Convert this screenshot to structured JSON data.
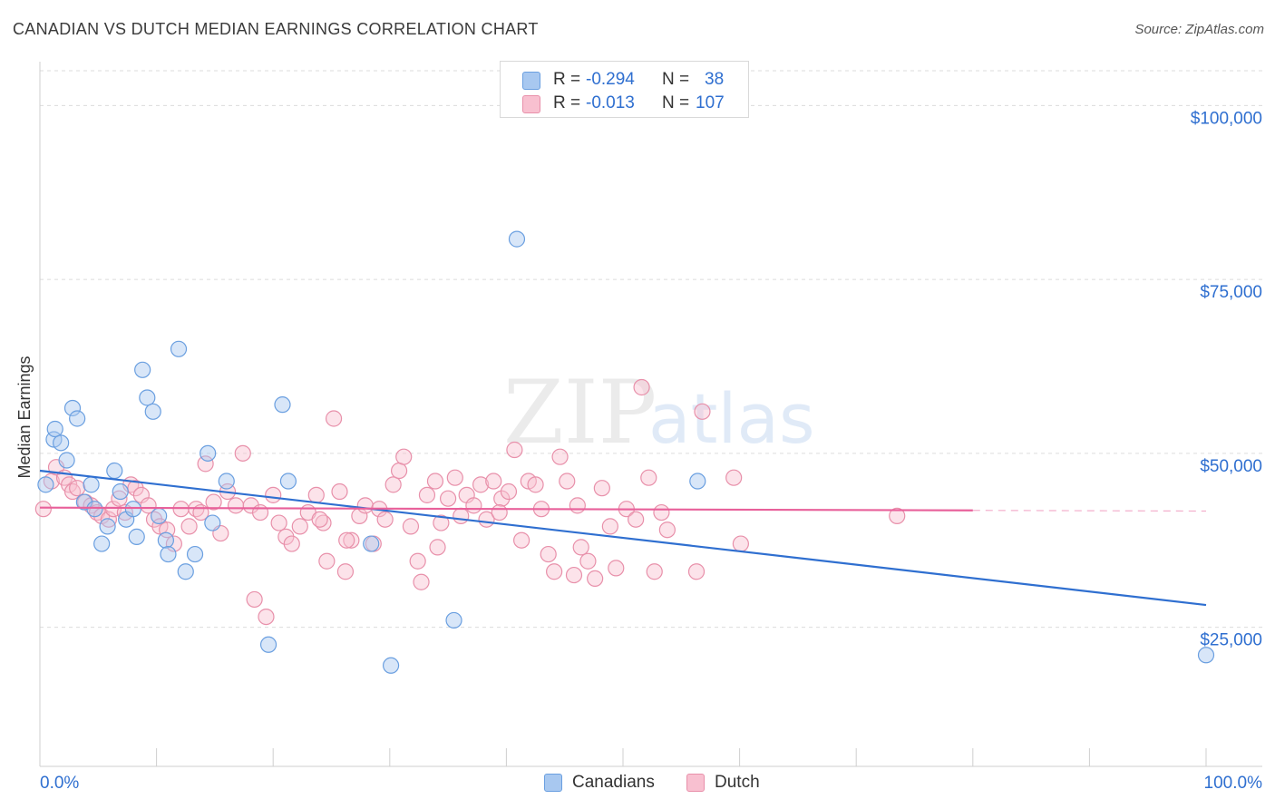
{
  "header": {
    "title": "CANADIAN VS DUTCH MEDIAN EARNINGS CORRELATION CHART",
    "source": "Source: ZipAtlas.com"
  },
  "watermark": {
    "zip": "ZIP",
    "atlas": "atlas"
  },
  "legend": {
    "rows": [
      {
        "r_label": "R =",
        "r_value": "-0.294",
        "n_label": "N =",
        "n_value": "38",
        "color": "#a8c8f0",
        "stroke": "#6a9fe0"
      },
      {
        "r_label": "R =",
        "r_value": "-0.013",
        "n_label": "N =",
        "n_value": "107",
        "color": "#f8c0d0",
        "stroke": "#e890aa"
      }
    ]
  },
  "bottom_legend": [
    {
      "label": "Canadians",
      "color": "#a8c8f0",
      "stroke": "#6a9fe0"
    },
    {
      "label": "Dutch",
      "color": "#f8c0d0",
      "stroke": "#e890aa"
    }
  ],
  "chart_data": {
    "type": "scatter",
    "title": "CANADIAN VS DUTCH MEDIAN EARNINGS CORRELATION CHART",
    "xlabel": "",
    "ylabel": "Median Earnings",
    "xlim": [
      0,
      100
    ],
    "ylim": [
      5000,
      105000
    ],
    "x_tick_labels": [
      "0.0%",
      "100.0%"
    ],
    "y_ticks": [
      {
        "value": 25000,
        "label": "$25,000"
      },
      {
        "value": 50000,
        "label": "$50,000"
      },
      {
        "value": 75000,
        "label": "$75,000"
      },
      {
        "value": 100000,
        "label": "$100,000"
      }
    ],
    "grid": true,
    "series": [
      {
        "name": "Canadians",
        "fill": "#a8c8f0",
        "stroke": "#6a9fe0",
        "line_color": "#2f6fd0",
        "trend": {
          "x": [
            0,
            100
          ],
          "y": [
            47500,
            28200
          ]
        },
        "points": [
          [
            0.5,
            45500
          ],
          [
            1.2,
            52000
          ],
          [
            1.3,
            53500
          ],
          [
            1.8,
            51500
          ],
          [
            2.3,
            49000
          ],
          [
            2.8,
            56500
          ],
          [
            3.2,
            55000
          ],
          [
            3.8,
            43000
          ],
          [
            4.4,
            45500
          ],
          [
            4.7,
            42000
          ],
          [
            5.3,
            37000
          ],
          [
            5.8,
            39500
          ],
          [
            6.4,
            47500
          ],
          [
            6.9,
            44500
          ],
          [
            7.4,
            40500
          ],
          [
            8.0,
            42000
          ],
          [
            8.3,
            38000
          ],
          [
            8.8,
            62000
          ],
          [
            9.2,
            58000
          ],
          [
            9.7,
            56000
          ],
          [
            10.2,
            41000
          ],
          [
            10.8,
            37500
          ],
          [
            11.0,
            35500
          ],
          [
            11.9,
            65000
          ],
          [
            12.5,
            33000
          ],
          [
            13.3,
            35500
          ],
          [
            14.4,
            50000
          ],
          [
            14.8,
            40000
          ],
          [
            16.0,
            46000
          ],
          [
            19.6,
            22500
          ],
          [
            20.8,
            57000
          ],
          [
            21.3,
            46000
          ],
          [
            28.4,
            37000
          ],
          [
            30.1,
            19500
          ],
          [
            35.5,
            26000
          ],
          [
            40.9,
            80800
          ],
          [
            56.4,
            46000
          ],
          [
            100.0,
            21000
          ]
        ]
      },
      {
        "name": "Dutch",
        "fill": "#f8c0d0",
        "stroke": "#e890aa",
        "line_color": "#e8609a",
        "trend": {
          "x": [
            0,
            80
          ],
          "y": [
            42200,
            41800
          ]
        },
        "trend_dashed": {
          "x": [
            80,
            100
          ],
          "y": [
            41800,
            41700
          ]
        },
        "points": [
          [
            0.3,
            42000
          ],
          [
            1.0,
            46000
          ],
          [
            1.4,
            48000
          ],
          [
            2.1,
            46500
          ],
          [
            2.5,
            45500
          ],
          [
            2.8,
            44500
          ],
          [
            3.2,
            45000
          ],
          [
            3.9,
            43000
          ],
          [
            4.4,
            42500
          ],
          [
            4.9,
            41500
          ],
          [
            5.3,
            41000
          ],
          [
            5.9,
            40500
          ],
          [
            6.3,
            42000
          ],
          [
            6.8,
            43500
          ],
          [
            7.3,
            41500
          ],
          [
            7.8,
            45500
          ],
          [
            8.2,
            45000
          ],
          [
            8.7,
            44000
          ],
          [
            9.3,
            42500
          ],
          [
            9.8,
            40500
          ],
          [
            10.3,
            39500
          ],
          [
            10.9,
            39000
          ],
          [
            11.5,
            37000
          ],
          [
            12.1,
            42000
          ],
          [
            12.8,
            39500
          ],
          [
            13.4,
            42000
          ],
          [
            13.8,
            41500
          ],
          [
            14.2,
            48500
          ],
          [
            14.9,
            43000
          ],
          [
            15.5,
            38500
          ],
          [
            16.1,
            44500
          ],
          [
            16.8,
            42500
          ],
          [
            17.4,
            50000
          ],
          [
            18.1,
            42500
          ],
          [
            18.4,
            29000
          ],
          [
            18.9,
            41500
          ],
          [
            19.4,
            26500
          ],
          [
            20.0,
            44000
          ],
          [
            20.5,
            40000
          ],
          [
            21.1,
            38000
          ],
          [
            21.6,
            37000
          ],
          [
            22.3,
            39500
          ],
          [
            23.0,
            41500
          ],
          [
            23.7,
            44000
          ],
          [
            24.3,
            40000
          ],
          [
            24.6,
            34500
          ],
          [
            25.2,
            55000
          ],
          [
            25.7,
            44500
          ],
          [
            26.2,
            33000
          ],
          [
            26.7,
            37500
          ],
          [
            27.4,
            41000
          ],
          [
            27.9,
            42500
          ],
          [
            28.6,
            37000
          ],
          [
            29.1,
            42000
          ],
          [
            29.6,
            40500
          ],
          [
            30.3,
            45500
          ],
          [
            30.8,
            47500
          ],
          [
            31.2,
            49500
          ],
          [
            31.8,
            39500
          ],
          [
            32.4,
            34500
          ],
          [
            32.7,
            31500
          ],
          [
            33.2,
            44000
          ],
          [
            33.9,
            46000
          ],
          [
            34.4,
            40000
          ],
          [
            35.0,
            43500
          ],
          [
            35.6,
            46500
          ],
          [
            36.1,
            41000
          ],
          [
            36.6,
            44000
          ],
          [
            37.2,
            42500
          ],
          [
            37.8,
            45500
          ],
          [
            38.3,
            40500
          ],
          [
            38.9,
            46000
          ],
          [
            39.6,
            43500
          ],
          [
            40.2,
            44500
          ],
          [
            40.7,
            50500
          ],
          [
            41.3,
            37500
          ],
          [
            41.9,
            46000
          ],
          [
            42.5,
            45500
          ],
          [
            43.0,
            42000
          ],
          [
            43.6,
            35500
          ],
          [
            44.1,
            33000
          ],
          [
            44.6,
            49500
          ],
          [
            45.2,
            46000
          ],
          [
            45.8,
            32500
          ],
          [
            46.4,
            36500
          ],
          [
            47.0,
            34500
          ],
          [
            47.6,
            32000
          ],
          [
            48.2,
            45000
          ],
          [
            48.9,
            39500
          ],
          [
            49.4,
            33500
          ],
          [
            50.3,
            42000
          ],
          [
            51.1,
            40500
          ],
          [
            51.6,
            59500
          ],
          [
            52.2,
            46500
          ],
          [
            52.7,
            33000
          ],
          [
            53.3,
            41500
          ],
          [
            56.3,
            33000
          ],
          [
            56.8,
            56000
          ],
          [
            59.5,
            46500
          ],
          [
            60.1,
            37000
          ],
          [
            73.5,
            41000
          ],
          [
            26.3,
            37500
          ],
          [
            34.1,
            36500
          ],
          [
            39.4,
            41500
          ],
          [
            46.1,
            42500
          ],
          [
            53.8,
            39000
          ],
          [
            24.0,
            40500
          ]
        ]
      }
    ]
  }
}
